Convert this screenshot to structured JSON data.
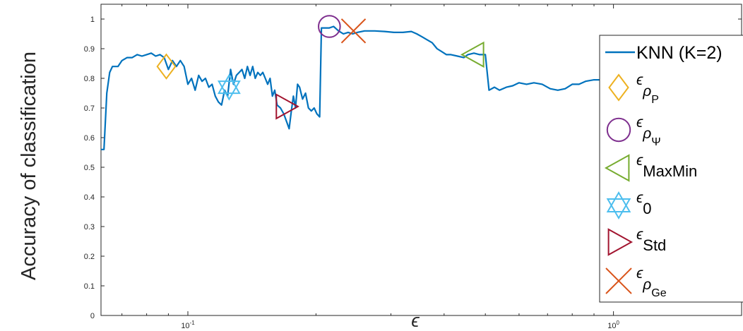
{
  "chart_data": {
    "type": "line",
    "title": "",
    "xlabel": "ϵ",
    "ylabel": "Accuracy of classification",
    "xscale": "log",
    "xlim": [
      0.0625,
      2.0
    ],
    "ylim": [
      0,
      1.05
    ],
    "yticks": [
      "0",
      "0.1",
      "0.2",
      "0.3",
      "0.4",
      "0.5",
      "0.6",
      "0.7",
      "0.8",
      "0.9",
      "1"
    ],
    "xticks": [
      {
        "base": "10",
        "exp": "-1",
        "value": 0.1
      },
      {
        "base": "10",
        "exp": "0",
        "value": 1.0
      }
    ],
    "grid": false,
    "legend_position": "right (partially clipped)",
    "series": [
      {
        "name": "KNN (K=2)",
        "color": "#0072BD",
        "points": [
          [
            0.0625,
            0.56
          ],
          [
            0.0635,
            0.56
          ],
          [
            0.0645,
            0.75
          ],
          [
            0.0655,
            0.82
          ],
          [
            0.0665,
            0.84
          ],
          [
            0.0685,
            0.84
          ],
          [
            0.07,
            0.86
          ],
          [
            0.072,
            0.87
          ],
          [
            0.074,
            0.87
          ],
          [
            0.076,
            0.88
          ],
          [
            0.078,
            0.875
          ],
          [
            0.08,
            0.88
          ],
          [
            0.082,
            0.885
          ],
          [
            0.084,
            0.875
          ],
          [
            0.086,
            0.88
          ],
          [
            0.088,
            0.87
          ],
          [
            0.09,
            0.83
          ],
          [
            0.092,
            0.86
          ],
          [
            0.094,
            0.84
          ],
          [
            0.096,
            0.86
          ],
          [
            0.098,
            0.84
          ],
          [
            0.1,
            0.78
          ],
          [
            0.102,
            0.8
          ],
          [
            0.104,
            0.76
          ],
          [
            0.106,
            0.81
          ],
          [
            0.108,
            0.79
          ],
          [
            0.11,
            0.8
          ],
          [
            0.112,
            0.77
          ],
          [
            0.114,
            0.78
          ],
          [
            0.116,
            0.74
          ],
          [
            0.118,
            0.72
          ],
          [
            0.12,
            0.71
          ],
          [
            0.122,
            0.76
          ],
          [
            0.124,
            0.74
          ],
          [
            0.126,
            0.83
          ],
          [
            0.128,
            0.78
          ],
          [
            0.13,
            0.81
          ],
          [
            0.132,
            0.82
          ],
          [
            0.134,
            0.83
          ],
          [
            0.136,
            0.8
          ],
          [
            0.138,
            0.84
          ],
          [
            0.14,
            0.81
          ],
          [
            0.142,
            0.84
          ],
          [
            0.144,
            0.8
          ],
          [
            0.146,
            0.82
          ],
          [
            0.148,
            0.81
          ],
          [
            0.15,
            0.82
          ],
          [
            0.152,
            0.8
          ],
          [
            0.154,
            0.78
          ],
          [
            0.156,
            0.8
          ],
          [
            0.158,
            0.74
          ],
          [
            0.16,
            0.76
          ],
          [
            0.162,
            0.71
          ],
          [
            0.165,
            0.7
          ],
          [
            0.168,
            0.68
          ],
          [
            0.171,
            0.65
          ],
          [
            0.173,
            0.63
          ],
          [
            0.175,
            0.69
          ],
          [
            0.177,
            0.74
          ],
          [
            0.179,
            0.7
          ],
          [
            0.181,
            0.78
          ],
          [
            0.183,
            0.77
          ],
          [
            0.186,
            0.73
          ],
          [
            0.189,
            0.75
          ],
          [
            0.192,
            0.7
          ],
          [
            0.195,
            0.69
          ],
          [
            0.198,
            0.7
          ],
          [
            0.201,
            0.68
          ],
          [
            0.204,
            0.67
          ],
          [
            0.206,
            0.97
          ],
          [
            0.209,
            0.97
          ],
          [
            0.215,
            0.97
          ],
          [
            0.22,
            0.975
          ],
          [
            0.226,
            0.96
          ],
          [
            0.232,
            0.95
          ],
          [
            0.238,
            0.955
          ],
          [
            0.244,
            0.95
          ],
          [
            0.25,
            0.955
          ],
          [
            0.26,
            0.96
          ],
          [
            0.275,
            0.96
          ],
          [
            0.29,
            0.958
          ],
          [
            0.305,
            0.955
          ],
          [
            0.32,
            0.955
          ],
          [
            0.335,
            0.958
          ],
          [
            0.345,
            0.95
          ],
          [
            0.355,
            0.94
          ],
          [
            0.365,
            0.93
          ],
          [
            0.375,
            0.92
          ],
          [
            0.385,
            0.9
          ],
          [
            0.395,
            0.89
          ],
          [
            0.405,
            0.88
          ],
          [
            0.415,
            0.88
          ],
          [
            0.43,
            0.875
          ],
          [
            0.445,
            0.87
          ],
          [
            0.455,
            0.88
          ],
          [
            0.47,
            0.885
          ],
          [
            0.485,
            0.88
          ],
          [
            0.5,
            0.88
          ],
          [
            0.51,
            0.76
          ],
          [
            0.525,
            0.77
          ],
          [
            0.54,
            0.76
          ],
          [
            0.56,
            0.77
          ],
          [
            0.58,
            0.775
          ],
          [
            0.6,
            0.785
          ],
          [
            0.625,
            0.78
          ],
          [
            0.65,
            0.785
          ],
          [
            0.68,
            0.78
          ],
          [
            0.71,
            0.765
          ],
          [
            0.74,
            0.76
          ],
          [
            0.77,
            0.765
          ],
          [
            0.8,
            0.78
          ],
          [
            0.83,
            0.78
          ],
          [
            0.86,
            0.79
          ],
          [
            0.9,
            0.795
          ],
          [
            0.95,
            0.795
          ],
          [
            1.0,
            0.8
          ],
          [
            1.05,
            0.8
          ]
        ]
      }
    ],
    "markers": [
      {
        "name": "ϵρP",
        "shape": "diamond",
        "color": "#EDB120",
        "x": 0.089,
        "y": 0.84,
        "legend": {
          "base": "ϵ",
          "sub": "ρ",
          "subsub": "P"
        }
      },
      {
        "name": "ϵρΨ",
        "shape": "circle",
        "color": "#7E2F8E",
        "x": 0.215,
        "y": 0.975,
        "legend": {
          "base": "ϵ",
          "sub": "ρ",
          "subsub": "Ψ"
        }
      },
      {
        "name": "ϵMaxMin",
        "shape": "triangle-left",
        "color": "#77AC30",
        "x": 0.47,
        "y": 0.88,
        "legend": {
          "base": "ϵ",
          "sub": "MaxMin",
          "subsub": ""
        }
      },
      {
        "name": "ϵ0",
        "shape": "hexagram",
        "color": "#4DBEEE",
        "x": 0.125,
        "y": 0.77,
        "legend": {
          "base": "ϵ",
          "sub": "0",
          "subsub": ""
        }
      },
      {
        "name": "ϵStd",
        "shape": "triangle-right",
        "color": "#A2142F",
        "x": 0.17,
        "y": 0.705,
        "legend": {
          "base": "ϵ",
          "sub": "Std",
          "subsub": ""
        }
      },
      {
        "name": "ϵρGe",
        "shape": "x",
        "color": "#D95319",
        "x": 0.245,
        "y": 0.96,
        "legend": {
          "base": "ϵ",
          "sub": "ρ",
          "subsub": "Ge"
        }
      }
    ]
  }
}
